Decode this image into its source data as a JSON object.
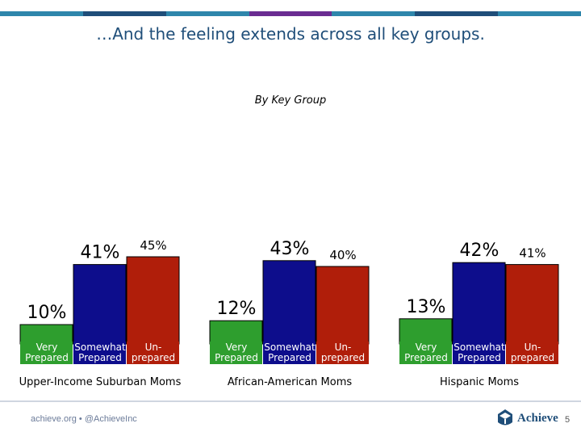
{
  "slide": {
    "title": "…And the feeling extends across all key groups.",
    "footer_text": "achieve.org • @AchieveInc",
    "logo_text": "Achieve",
    "page_number": "5",
    "top_bar_colors": [
      "#2e86ab",
      "#1f4e79",
      "#2e86ab",
      "#6a2c91",
      "#2e86ab",
      "#1f4e79",
      "#2e86ab"
    ]
  },
  "chart_data": {
    "type": "bar",
    "title": "",
    "subtitle": "By Key Group",
    "ylim": [
      0,
      50
    ],
    "colors": [
      "#2e9e2e",
      "#0d0d8c",
      "#b01e0a"
    ],
    "groups": [
      {
        "name": "Upper-Income Suburban Moms",
        "categories": [
          [
            "Very",
            "Prepared"
          ],
          [
            "Somewhat",
            "Prepared"
          ],
          [
            "Un-",
            "prepared"
          ]
        ],
        "values": [
          10,
          41,
          45
        ]
      },
      {
        "name": "African-American Moms",
        "categories": [
          [
            "Very",
            "Prepared"
          ],
          [
            "Somewhat",
            "Prepared"
          ],
          [
            "Un-",
            "prepared"
          ]
        ],
        "values": [
          12,
          43,
          40
        ]
      },
      {
        "name": "Hispanic Moms",
        "categories": [
          [
            "Very",
            "Prepared"
          ],
          [
            "Somewhat",
            "Prepared"
          ],
          [
            "Un-",
            "prepared"
          ]
        ],
        "values": [
          13,
          42,
          41
        ]
      }
    ]
  }
}
